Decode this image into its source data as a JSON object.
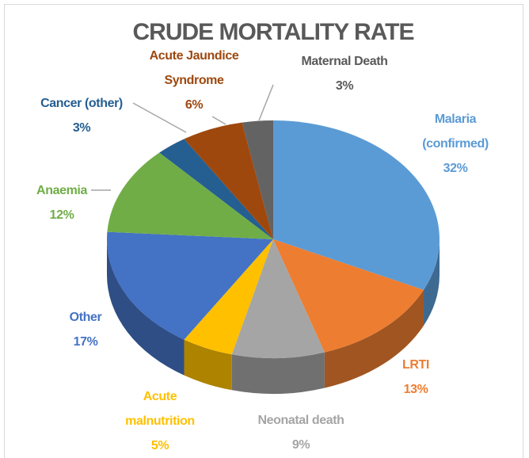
{
  "chart_data": {
    "type": "pie",
    "title": "CRUDE MORTALITY RATE",
    "categories": [
      "Malaria (confirmed)",
      "LRTI",
      "Neonatal death",
      "Acute malnutrition",
      "Other",
      "Anaemia",
      "Cancer (other)",
      "Acute Jaundice Syndrome",
      "Maternal Death"
    ],
    "values": [
      32,
      13,
      9,
      5,
      17,
      12,
      3,
      6,
      3
    ],
    "value_labels": [
      "32%",
      "13%",
      "9%",
      "5%",
      "17%",
      "12%",
      "3%",
      "6%",
      "3%"
    ],
    "colors": [
      "#5b9bd5",
      "#ed7d31",
      "#a5a5a5",
      "#ffc000",
      "#4472c4",
      "#70ad47",
      "#255e91",
      "#9e480e",
      "#636363"
    ]
  }
}
